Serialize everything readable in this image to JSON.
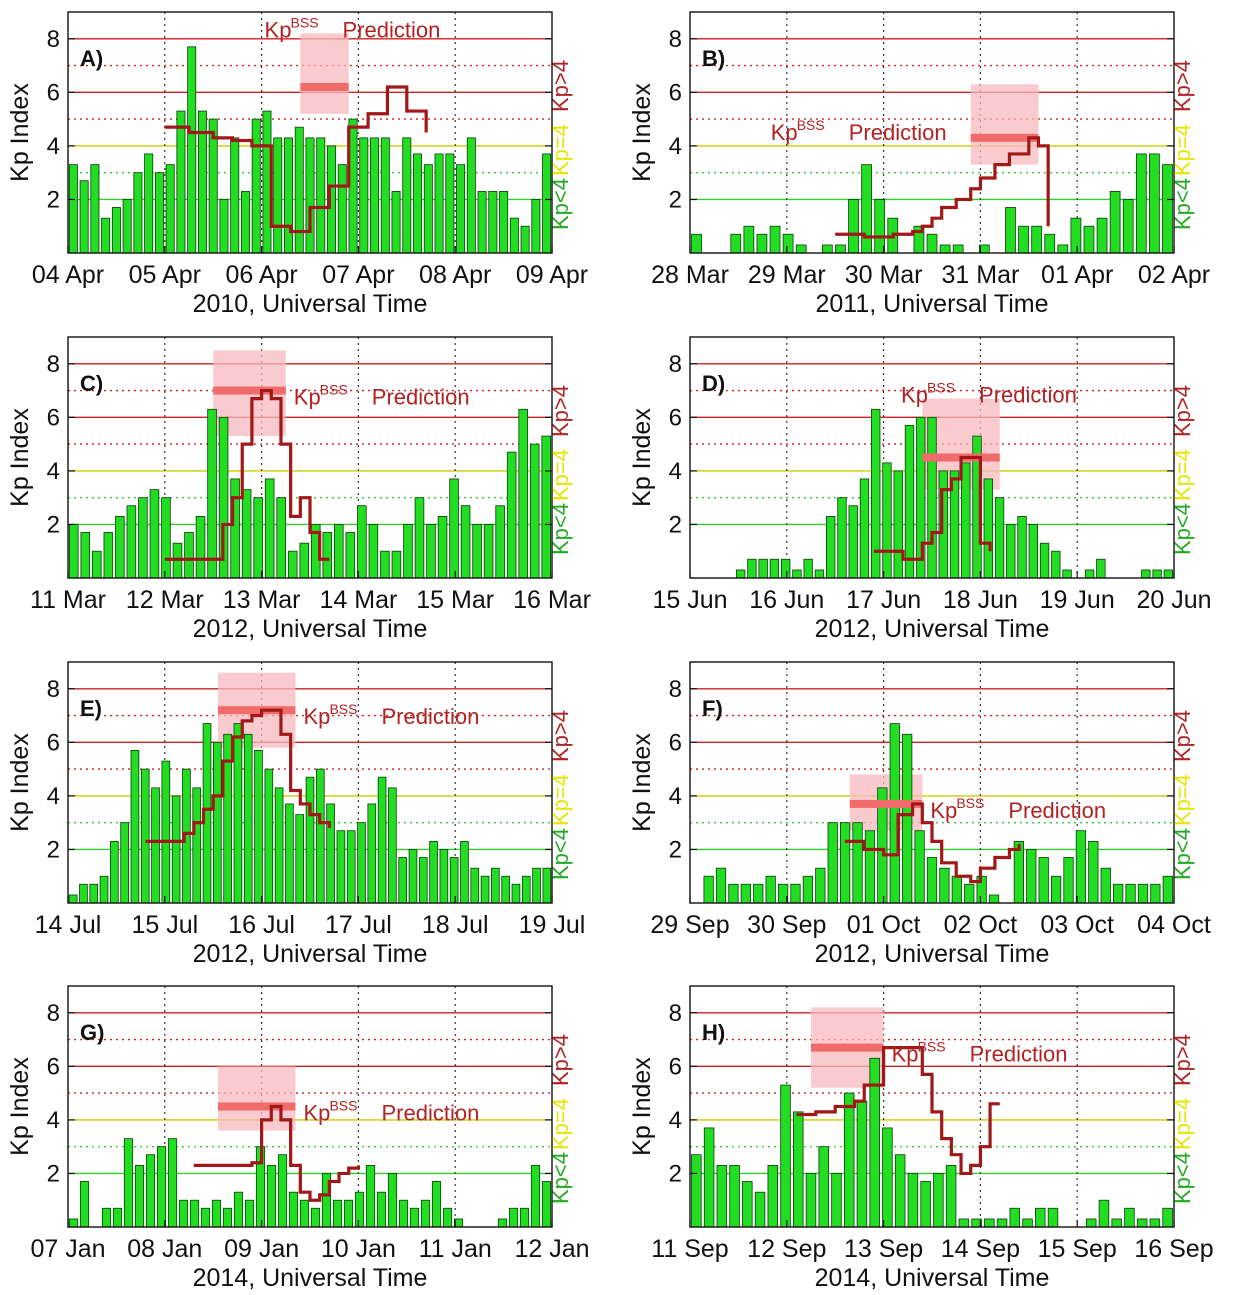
{
  "figure": {
    "ylabel": "Kp Index",
    "kp_gt": "Kp>4",
    "kp_eq": "Kp=4",
    "kp_lt": "Kp<4",
    "prediction_label_main": "Kp",
    "prediction_label_sup": "BSS",
    "prediction_label_word": "Prediction",
    "colors": {
      "bar_fill": "#22dd22",
      "bar_stroke": "#0b3d0b",
      "kp_line": "#a01818",
      "prediction_band": "#f7b9bf",
      "prediction_bar": "#f26b6b",
      "line_red": "#cc2222",
      "line_yellow": "#cccc00",
      "line_green": "#33cc33",
      "label_gt": "#b22222",
      "label_eq": "#e6e600",
      "label_lt": "#22aa22"
    }
  },
  "chart_data": [
    {
      "panel": "A)",
      "type": "bar",
      "xlabel": "2010, Universal Time",
      "ylabel": "Kp Index",
      "x_ticks": [
        "04 Apr",
        "05 Apr",
        "06 Apr",
        "07 Apr",
        "08 Apr",
        "09 Apr"
      ],
      "ylim": [
        0,
        9
      ],
      "y_ticks": [
        2,
        4,
        6,
        8
      ],
      "series": [
        {
          "values": [
            3.3,
            2.7,
            3.3,
            1.3,
            1.7,
            2.0,
            3.0,
            3.7,
            3.0,
            3.3,
            5.3,
            7.7,
            5.3,
            5.0,
            2.0,
            4.3,
            2.3,
            5.0,
            5.3,
            4.3,
            4.3,
            4.7,
            4.3,
            4.3,
            4.0,
            3.3,
            5.0,
            4.3,
            4.3,
            4.3,
            2.3,
            4.3,
            3.7,
            3.3,
            3.7,
            3.7,
            3.3,
            4.3,
            2.3,
            2.3,
            2.3,
            1.3,
            1.0,
            2.0,
            3.7
          ]
        },
        {
          "x": [
            0.2,
            0.2,
            0.25,
            0.3,
            0.34,
            0.38,
            0.42,
            0.46,
            0.5,
            0.5,
            0.54,
            0.58,
            0.62,
            0.66,
            0.7,
            0.74,
            0.74
          ],
          "y": [
            4.7,
            4.7,
            4.5,
            4.3,
            4.2,
            4.0,
            1.0,
            0.8,
            0.8,
            1.7,
            2.5,
            4.7,
            5.2,
            6.2,
            5.3,
            4.5,
            4.5
          ]
        }
      ],
      "prediction": {
        "value": 6.2,
        "x_range": [
          0.48,
          0.58
        ],
        "band": [
          5.2,
          8.2
        ]
      },
      "label_pos": "top"
    },
    {
      "panel": "B)",
      "type": "bar",
      "xlabel": "2011, Universal Time",
      "ylabel": "Kp Index",
      "x_ticks": [
        "28 Mar",
        "29 Mar",
        "30 Mar",
        "31 Mar",
        "01 Apr",
        "02 Apr"
      ],
      "ylim": [
        0,
        9
      ],
      "y_ticks": [
        2,
        4,
        6,
        8
      ],
      "series": [
        {
          "values": [
            0.7,
            0,
            0,
            0.7,
            1.0,
            0.7,
            1.0,
            0.7,
            0.3,
            0,
            0.3,
            0.3,
            2.0,
            3.3,
            2.0,
            1.3,
            0,
            1.0,
            0.7,
            0.3,
            0.3,
            0,
            0.3,
            0,
            1.7,
            1.0,
            1.0,
            0.7,
            0.3,
            1.3,
            1.0,
            1.3,
            2.3,
            2.0,
            3.7,
            3.7,
            3.3
          ]
        },
        {
          "x": [
            0.3,
            0.36,
            0.42,
            0.46,
            0.48,
            0.5,
            0.52,
            0.55,
            0.58,
            0.6,
            0.63,
            0.66,
            0.7,
            0.72,
            0.74
          ],
          "y": [
            0.7,
            0.6,
            0.7,
            0.8,
            1.0,
            1.3,
            1.7,
            2.0,
            2.4,
            2.8,
            3.3,
            3.7,
            4.3,
            4.0,
            1.0
          ]
        }
      ],
      "prediction": {
        "value": 4.3,
        "x_range": [
          0.58,
          0.72
        ],
        "band": [
          3.3,
          6.3
        ]
      },
      "label_pos": "mid"
    },
    {
      "panel": "C)",
      "type": "bar",
      "xlabel": "2012, Universal Time",
      "ylabel": "Kp Index",
      "x_ticks": [
        "11 Mar",
        "12 Mar",
        "13 Mar",
        "14 Mar",
        "15 Mar",
        "16 Mar"
      ],
      "ylim": [
        0,
        9
      ],
      "y_ticks": [
        2,
        4,
        6,
        8
      ],
      "series": [
        {
          "values": [
            2.0,
            1.7,
            1.0,
            1.7,
            2.3,
            2.7,
            3.0,
            3.3,
            3.0,
            1.3,
            1.7,
            2.3,
            6.3,
            6.0,
            3.7,
            3.3,
            3.0,
            3.7,
            3.0,
            1.0,
            1.3,
            2.0,
            1.7,
            2.0,
            1.7,
            2.7,
            2.0,
            1.0,
            1.0,
            2.0,
            3.0,
            2.0,
            2.3,
            3.7,
            2.7,
            2.0,
            2.0,
            2.7,
            4.7,
            6.3,
            5.0,
            5.3
          ]
        },
        {
          "x": [
            0.2,
            0.24,
            0.28,
            0.3,
            0.32,
            0.34,
            0.36,
            0.38,
            0.4,
            0.42,
            0.44,
            0.46,
            0.48,
            0.5,
            0.52,
            0.54
          ],
          "y": [
            0.7,
            0.7,
            0.7,
            0.7,
            2.0,
            3.0,
            5.0,
            6.7,
            7.0,
            6.7,
            5.0,
            2.3,
            3.0,
            1.7,
            0.7,
            0.7
          ]
        }
      ],
      "prediction": {
        "value": 7.0,
        "x_range": [
          0.3,
          0.45
        ],
        "band": [
          5.3,
          8.5
        ]
      },
      "label_pos": "right"
    },
    {
      "panel": "D)",
      "type": "bar",
      "xlabel": "2012, Universal Time",
      "ylabel": "Kp Index",
      "x_ticks": [
        "15 Jun",
        "16 Jun",
        "17 Jun",
        "18 Jun",
        "19 Jun",
        "20 Jun"
      ],
      "ylim": [
        0,
        9
      ],
      "y_ticks": [
        2,
        4,
        6,
        8
      ],
      "series": [
        {
          "values": [
            0,
            0,
            0,
            0,
            0.3,
            0.7,
            0.7,
            0.7,
            0.7,
            0.3,
            0.7,
            0.3,
            2.3,
            3.0,
            2.7,
            3.7,
            6.3,
            4.3,
            4.0,
            5.7,
            6.0,
            6.0,
            4.0,
            4.0,
            4.3,
            5.3,
            3.7,
            3.0,
            2.0,
            2.3,
            2.0,
            1.3,
            1.0,
            0.3,
            0,
            0.3,
            0.7,
            0,
            0,
            0,
            0.3,
            0.3,
            0.3
          ]
        },
        {
          "x": [
            0.38,
            0.44,
            0.46,
            0.48,
            0.5,
            0.52,
            0.54,
            0.56,
            0.58,
            0.6,
            0.62
          ],
          "y": [
            1.0,
            0.7,
            0.7,
            1.3,
            1.7,
            3.3,
            3.7,
            4.5,
            4.5,
            1.3,
            1.0
          ]
        }
      ],
      "prediction": {
        "value": 4.5,
        "x_range": [
          0.48,
          0.64
        ],
        "band": [
          3.3,
          6.7
        ]
      },
      "label_pos": "top"
    },
    {
      "panel": "E)",
      "type": "bar",
      "xlabel": "2012, Universal Time",
      "ylabel": "Kp Index",
      "x_ticks": [
        "14 Jul",
        "15 Jul",
        "16 Jul",
        "17 Jul",
        "18 Jul",
        "19 Jul"
      ],
      "ylim": [
        0,
        9
      ],
      "y_ticks": [
        2,
        4,
        6,
        8
      ],
      "series": [
        {
          "values": [
            0.3,
            0.7,
            0.7,
            1.0,
            2.3,
            3.0,
            5.7,
            5.0,
            4.3,
            5.3,
            4.0,
            5.0,
            4.3,
            6.7,
            6.0,
            6.3,
            6.7,
            6.3,
            5.7,
            5.0,
            4.3,
            3.7,
            3.3,
            4.7,
            5.0,
            3.7,
            2.7,
            2.7,
            3.0,
            3.7,
            4.7,
            4.3,
            1.7,
            2.0,
            1.7,
            2.3,
            2.0,
            1.7,
            2.3,
            1.3,
            1.0,
            1.3,
            1.0,
            0.7,
            1.0,
            1.3,
            1.3
          ]
        },
        {
          "x": [
            0.16,
            0.2,
            0.24,
            0.26,
            0.28,
            0.3,
            0.32,
            0.34,
            0.36,
            0.38,
            0.4,
            0.42,
            0.44,
            0.46,
            0.48,
            0.5,
            0.52,
            0.54
          ],
          "y": [
            2.3,
            2.3,
            2.6,
            3.0,
            3.5,
            4.0,
            5.3,
            6.2,
            6.8,
            7.0,
            7.2,
            7.2,
            6.3,
            4.2,
            3.7,
            3.3,
            3.0,
            2.8
          ]
        }
      ],
      "prediction": {
        "value": 7.2,
        "x_range": [
          0.31,
          0.47
        ],
        "band": [
          5.8,
          8.6
        ]
      },
      "label_pos": "right"
    },
    {
      "panel": "F)",
      "type": "bar",
      "xlabel": "2012, Universal Time",
      "ylabel": "Kp Index",
      "x_ticks": [
        "29 Sep",
        "30 Sep",
        "01 Oct",
        "02 Oct",
        "03 Oct",
        "04 Oct"
      ],
      "ylim": [
        0,
        9
      ],
      "y_ticks": [
        2,
        4,
        6,
        8
      ],
      "series": [
        {
          "values": [
            0,
            1.0,
            1.3,
            0.7,
            0.7,
            0.7,
            1.0,
            0.7,
            0.7,
            1.0,
            1.3,
            3.0,
            3.0,
            3.0,
            2.7,
            4.3,
            6.7,
            6.3,
            2.7,
            1.7,
            1.3,
            1.0,
            0.7,
            1.0,
            0.3,
            0,
            2.3,
            2.0,
            1.7,
            1.0,
            1.7,
            2.7,
            2.3,
            1.3,
            0.7,
            0.7,
            0.7,
            0.7,
            1.0
          ]
        },
        {
          "x": [
            0.32,
            0.36,
            0.4,
            0.43,
            0.46,
            0.48,
            0.5,
            0.52,
            0.55,
            0.58,
            0.6,
            0.63,
            0.66,
            0.68
          ],
          "y": [
            2.3,
            2.0,
            1.8,
            3.3,
            3.7,
            3.0,
            2.3,
            1.5,
            1.0,
            0.8,
            1.3,
            1.7,
            2.0,
            2.2
          ]
        }
      ],
      "prediction": {
        "value": 3.7,
        "x_range": [
          0.33,
          0.48
        ],
        "band": [
          2.7,
          4.8
        ]
      },
      "label_pos": "right"
    },
    {
      "panel": "G)",
      "type": "bar",
      "xlabel": "2014, Universal Time",
      "ylabel": "Kp Index",
      "x_ticks": [
        "07 Jan",
        "08 Jan",
        "09 Jan",
        "10 Jan",
        "11 Jan",
        "12 Jan"
      ],
      "ylim": [
        0,
        9
      ],
      "y_ticks": [
        2,
        4,
        6,
        8
      ],
      "series": [
        {
          "values": [
            0.3,
            1.7,
            0,
            0.7,
            0.7,
            3.3,
            2.3,
            2.7,
            3.0,
            3.3,
            1.0,
            1.0,
            0.7,
            1.0,
            0.7,
            1.3,
            1.0,
            3.0,
            2.3,
            2.7,
            1.3,
            1.0,
            0.7,
            2.0,
            1.0,
            1.0,
            1.3,
            2.3,
            1.3,
            2.0,
            1.0,
            0.7,
            1.0,
            1.7,
            0.7,
            0.3,
            0,
            0,
            0,
            0.3,
            0.7,
            0.7,
            2.3,
            1.7
          ]
        },
        {
          "x": [
            0.26,
            0.3,
            0.34,
            0.38,
            0.4,
            0.42,
            0.44,
            0.46,
            0.48,
            0.5,
            0.52,
            0.54,
            0.56,
            0.58,
            0.6
          ],
          "y": [
            2.3,
            2.3,
            2.3,
            2.4,
            4.0,
            4.5,
            4.0,
            2.3,
            1.3,
            1.0,
            1.2,
            1.7,
            2.0,
            2.2,
            2.3
          ]
        }
      ],
      "prediction": {
        "value": 4.5,
        "x_range": [
          0.31,
          0.47
        ],
        "band": [
          3.6,
          6.0
        ]
      },
      "label_pos": "right"
    },
    {
      "panel": "H)",
      "type": "bar",
      "xlabel": "2014, Universal Time",
      "ylabel": "Kp Index",
      "x_ticks": [
        "11 Sep",
        "12 Sep",
        "13 Sep",
        "14 Sep",
        "15 Sep",
        "16 Sep"
      ],
      "ylim": [
        0,
        9
      ],
      "y_ticks": [
        2,
        4,
        6,
        8
      ],
      "series": [
        {
          "values": [
            2.7,
            3.7,
            2.3,
            2.3,
            1.7,
            1.3,
            2.3,
            5.3,
            4.3,
            2.0,
            3.0,
            2.0,
            5.0,
            4.7,
            6.3,
            3.7,
            2.7,
            2.0,
            1.7,
            2.0,
            2.3,
            0.3,
            0.3,
            0.3,
            0.3,
            0.7,
            0.3,
            0.7,
            0.7,
            0,
            0,
            0.3,
            1.0,
            0.3,
            0.7,
            0.3,
            0.3,
            0.7
          ]
        },
        {
          "x": [
            0.22,
            0.26,
            0.3,
            0.34,
            0.36,
            0.4,
            0.43,
            0.46,
            0.48,
            0.5,
            0.52,
            0.54,
            0.56,
            0.58,
            0.6,
            0.62,
            0.64
          ],
          "y": [
            4.2,
            4.3,
            4.5,
            4.7,
            5.3,
            6.7,
            6.7,
            6.7,
            5.7,
            4.3,
            3.3,
            2.7,
            2.0,
            2.3,
            3.0,
            4.6,
            4.6
          ]
        }
      ],
      "prediction": {
        "value": 6.7,
        "x_range": [
          0.25,
          0.4
        ],
        "band": [
          5.2,
          8.2
        ]
      },
      "label_pos": "right"
    }
  ]
}
